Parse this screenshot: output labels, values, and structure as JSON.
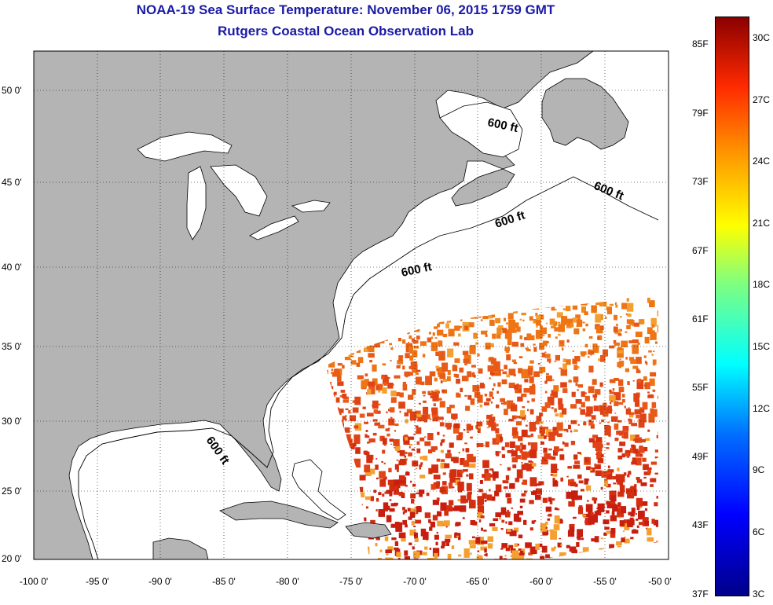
{
  "title": {
    "line1": "NOAA-19 Sea Surface Temperature:  November 06, 2015 1759 GMT",
    "line2": "Rutgers Coastal Ocean Observation Lab"
  },
  "map": {
    "lon_range": [
      -100,
      -50
    ],
    "lat_range": [
      20,
      52
    ],
    "grid": "dotted",
    "lat_labels": [
      "50 0'",
      "45 0'",
      "40 0'",
      "35 0'",
      "30 0'",
      "25 0'",
      "20 0'"
    ],
    "lon_labels": [
      "-100 0'",
      "-95 0'",
      "-90 0'",
      "-85 0'",
      "-80 0'",
      "-75 0'",
      "-70 0'",
      "-65 0'",
      "-60 0'",
      "-55 0'",
      "-50 0'"
    ],
    "isobath_labels": [
      "600 ft",
      "600 ft",
      "600 ft",
      "600 ft",
      "600 ft"
    ],
    "colors": {
      "land": "#b4b4b4",
      "ocean": "#ffffff",
      "title": "#1a1aa6"
    }
  },
  "colorbar": {
    "fahrenheit_labels": [
      "85F",
      "79F",
      "73F",
      "67F",
      "61F",
      "55F",
      "49F",
      "43F",
      "37F"
    ],
    "celsius_labels": [
      "30C",
      "27C",
      "24C",
      "21C",
      "18C",
      "15C",
      "12C",
      "9C",
      "6C",
      "3C"
    ],
    "colors": [
      "#00008a",
      "#0000ff",
      "#0070ff",
      "#00ffff",
      "#7fff7f",
      "#ffff00",
      "#ff9a00",
      "#ff2a00",
      "#8a0000"
    ]
  }
}
